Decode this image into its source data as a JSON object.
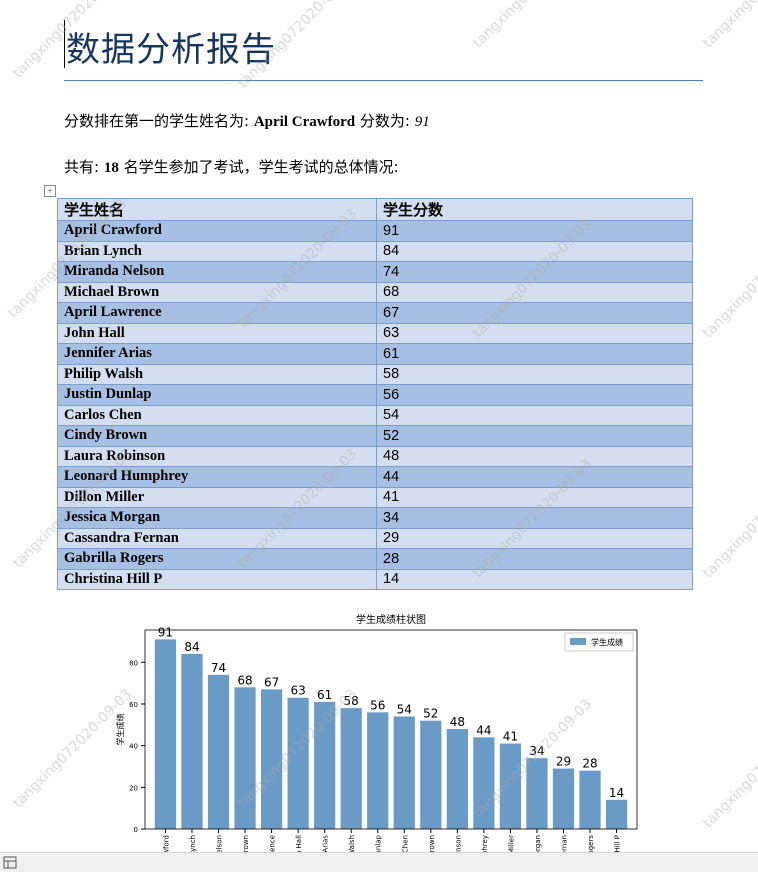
{
  "title": "数据分析报告",
  "watermark": "tangxing072020-09-03",
  "paragraphs": [
    {
      "lead": "分数排在第一的学生姓名为:",
      "name": "April Crawford",
      "mid": "分数为:",
      "score": "91"
    },
    {
      "lead": "共有:",
      "count": "18",
      "tail": "名学生参加了考试，学生考试的总体情况:"
    }
  ],
  "table": {
    "header": [
      "学生姓名",
      "学生分数"
    ],
    "rows": [
      [
        "April Crawford",
        "91"
      ],
      [
        "Brian Lynch",
        "84"
      ],
      [
        "Miranda Nelson",
        "74"
      ],
      [
        "Michael Brown",
        "68"
      ],
      [
        "April Lawrence",
        "67"
      ],
      [
        "John Hall",
        "63"
      ],
      [
        "Jennifer Arias",
        "61"
      ],
      [
        "Philip Walsh",
        "58"
      ],
      [
        "Justin Dunlap",
        "56"
      ],
      [
        "Carlos Chen",
        "54"
      ],
      [
        "Cindy Brown",
        "52"
      ],
      [
        "Laura Robinson",
        "48"
      ],
      [
        "Leonard Humphrey",
        "44"
      ],
      [
        "Dillon Miller",
        "41"
      ],
      [
        "Jessica Morgan",
        "34"
      ],
      [
        "Cassandra Fernan",
        "29"
      ],
      [
        "Gabrilla Rogers",
        "28"
      ],
      [
        "Christina Hill P",
        "14"
      ]
    ]
  },
  "chart_data": {
    "type": "bar",
    "title": "学生成绩柱状图",
    "ylabel": "学生成绩",
    "categories": [
      "April Crawford",
      "Brian Lynch",
      "Miranda Nelson",
      "Michael Brown",
      "April Lawrence",
      "John Hall",
      "Jennifer Arias",
      "Philip Walsh",
      "Justin Dunlap",
      "Carlos Chen",
      "Cindy Brown",
      "Laura Robinson",
      "Leonard Humphrey",
      "Dillon Miller",
      "Jessica Morgan",
      "Cassandra Fernan",
      "Gabrilla Rogers",
      "Christina Hill P"
    ],
    "series": [
      {
        "name": "学生成绩",
        "color": "#6a9bc7",
        "values": [
          91,
          84,
          74,
          68,
          67,
          63,
          61,
          58,
          56,
          54,
          52,
          48,
          44,
          41,
          34,
          29,
          28,
          14
        ]
      }
    ],
    "ylim": [
      0,
      95.5
    ],
    "yticks": [
      0,
      20,
      40,
      60,
      80
    ],
    "legend": "upper right"
  }
}
